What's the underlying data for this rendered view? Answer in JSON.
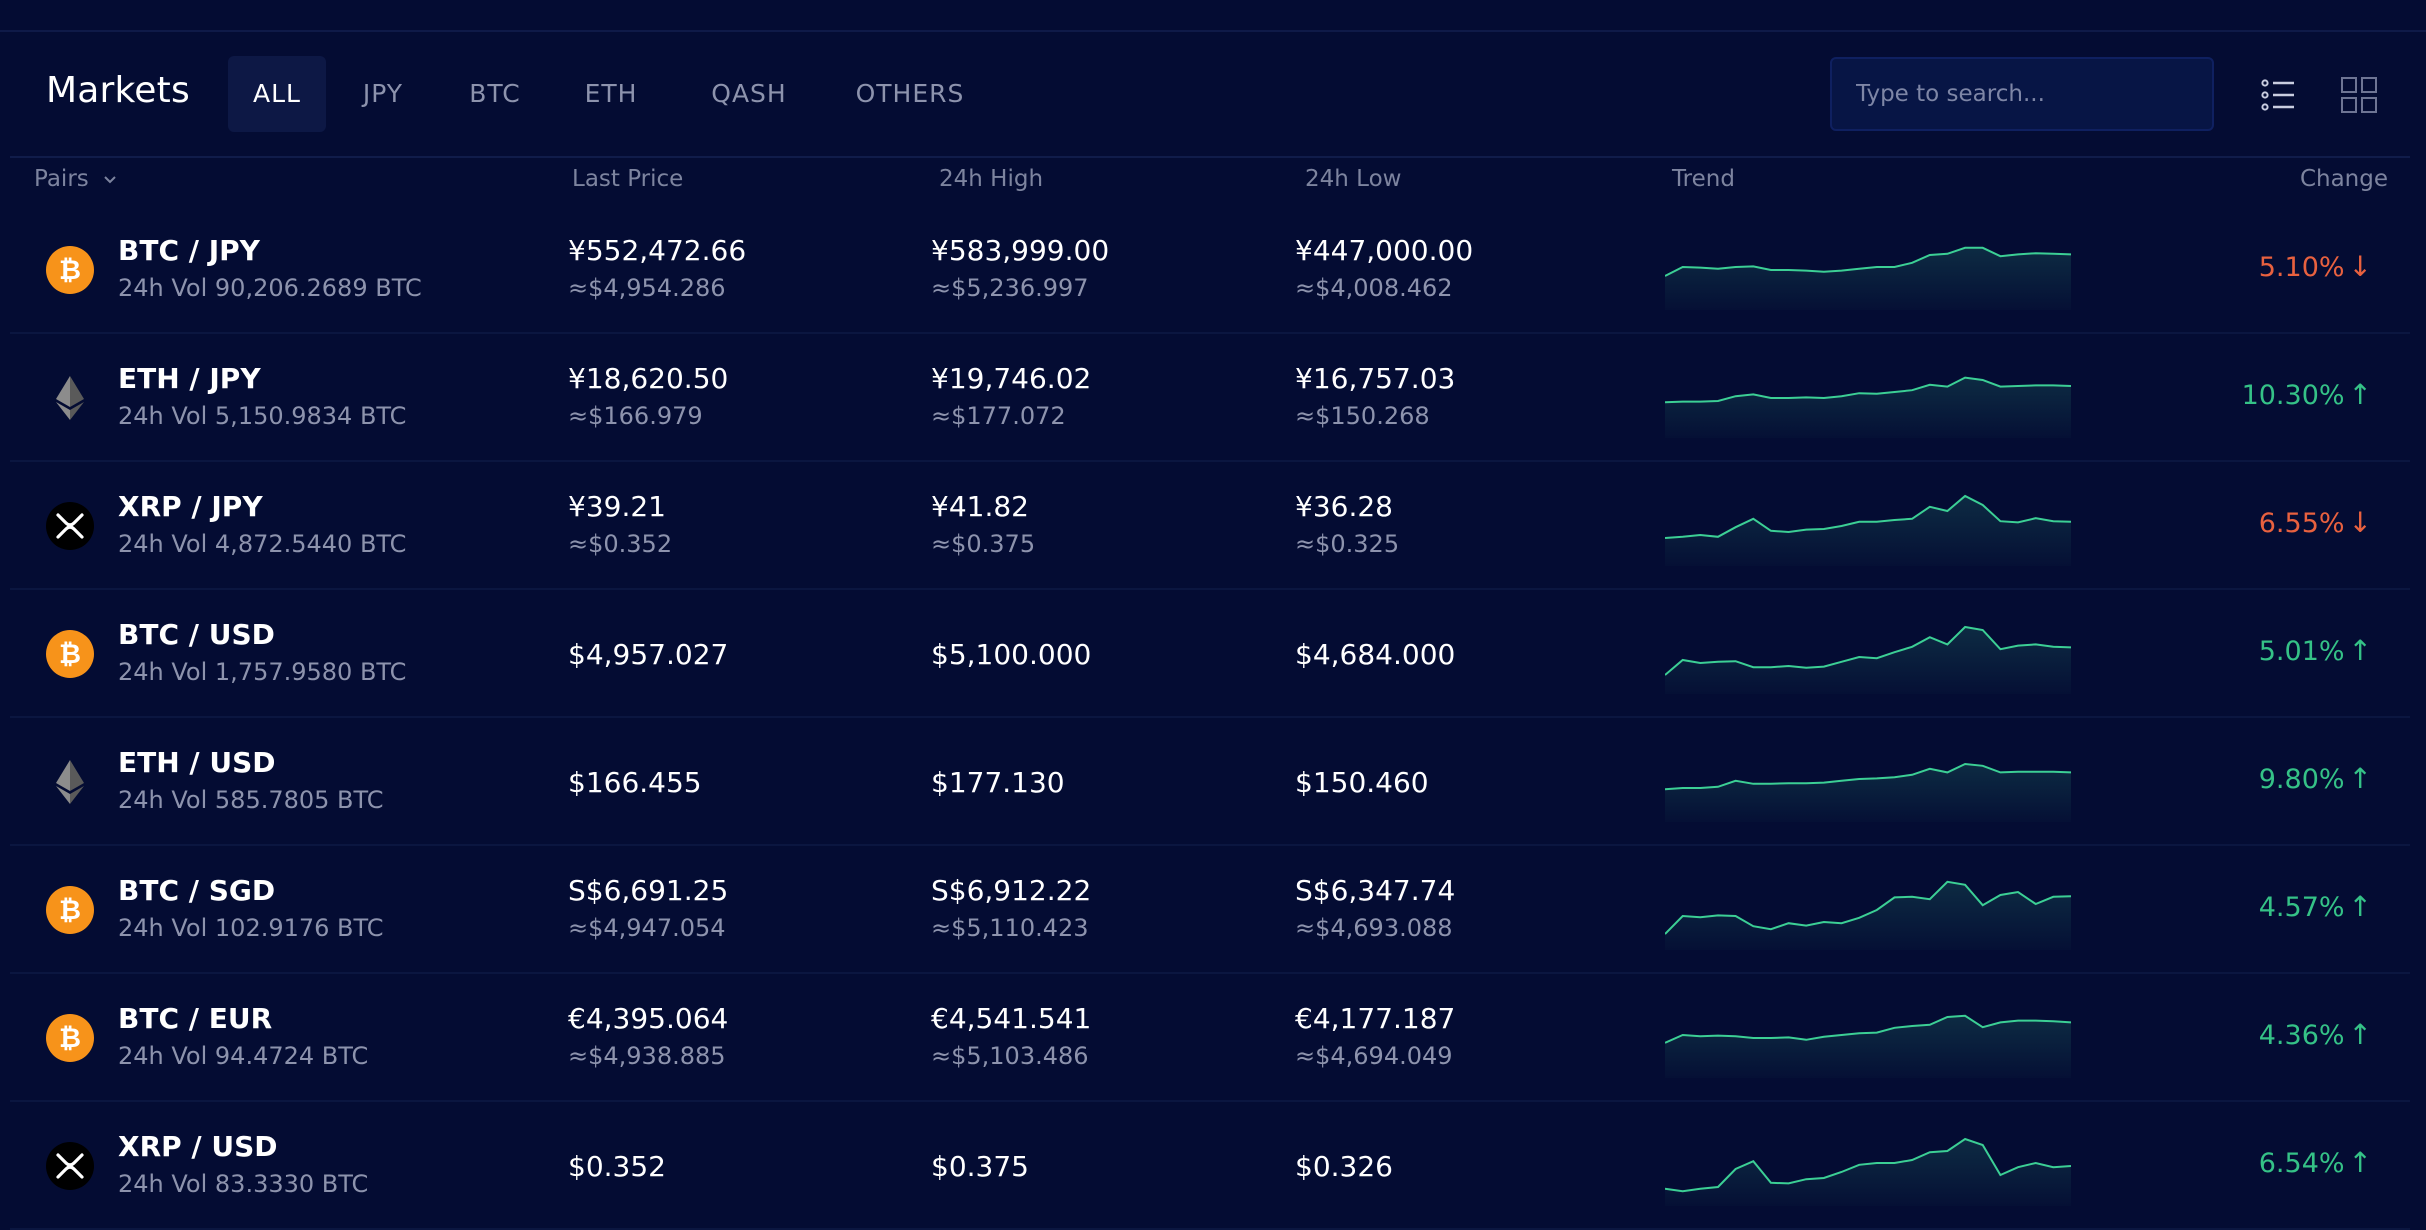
{
  "header": {
    "title": "Markets",
    "tabs": [
      {
        "label": "ALL",
        "active": true
      },
      {
        "label": "JPY",
        "active": false
      },
      {
        "label": "BTC",
        "active": false
      },
      {
        "label": "ETH",
        "active": false
      },
      {
        "label": "QASH",
        "active": false
      },
      {
        "label": "OTHERS",
        "active": false
      }
    ],
    "search": {
      "placeholder": "Type to search..."
    },
    "view_icons": [
      "list-view-icon",
      "grid-view-icon"
    ]
  },
  "table": {
    "columns": {
      "pairs": "Pairs",
      "last_price": "Last Price",
      "high": "24h High",
      "low": "24h Low",
      "trend": "Trend",
      "change": "Change"
    },
    "rows": [
      {
        "coin": "btc",
        "pair": "BTC / JPY",
        "vol": "24h Vol 90,206.2689 BTC",
        "last": "¥552,472.66",
        "last_sub": "≈$4,954.286",
        "high": "¥583,999.00",
        "high_sub": "≈$5,236.997",
        "low": "¥447,000.00",
        "low_sub": "≈$4,008.462",
        "change": "5.10%",
        "direction": "down",
        "trend": [
          0.4,
          0.55,
          0.54,
          0.52,
          0.55,
          0.56,
          0.5,
          0.5,
          0.49,
          0.47,
          0.49,
          0.52,
          0.55,
          0.55,
          0.62,
          0.75,
          0.77,
          0.87,
          0.87,
          0.73,
          0.76,
          0.78,
          0.77,
          0.76
        ]
      },
      {
        "coin": "eth",
        "pair": "ETH / JPY",
        "vol": "24h Vol 5,150.9834 BTC",
        "last": "¥18,620.50",
        "last_sub": "≈$166.979",
        "high": "¥19,746.02",
        "high_sub": "≈$177.072",
        "low": "¥16,757.03",
        "low_sub": "≈$150.268",
        "change": "10.30%",
        "direction": "up",
        "trend": [
          0.43,
          0.44,
          0.44,
          0.45,
          0.53,
          0.56,
          0.5,
          0.5,
          0.51,
          0.5,
          0.53,
          0.58,
          0.57,
          0.6,
          0.63,
          0.72,
          0.69,
          0.84,
          0.8,
          0.69,
          0.7,
          0.71,
          0.71,
          0.7
        ]
      },
      {
        "coin": "xrp",
        "pair": "XRP / JPY",
        "vol": "24h Vol 4,872.5440 BTC",
        "last": "¥39.21",
        "last_sub": "≈$0.352",
        "high": "¥41.82",
        "high_sub": "≈$0.375",
        "low": "¥36.28",
        "low_sub": "≈$0.325",
        "change": "6.55%",
        "direction": "down",
        "trend": [
          0.3,
          0.32,
          0.35,
          0.32,
          0.48,
          0.62,
          0.42,
          0.4,
          0.44,
          0.45,
          0.5,
          0.57,
          0.57,
          0.6,
          0.62,
          0.82,
          0.75,
          1.0,
          0.85,
          0.58,
          0.56,
          0.63,
          0.58,
          0.57
        ]
      },
      {
        "coin": "btc",
        "pair": "BTC / USD",
        "vol": "24h Vol 1,757.9580 BTC",
        "last": "$4,957.027",
        "last_sub": "",
        "high": "$5,100.000",
        "high_sub": "",
        "low": "$4,684.000",
        "low_sub": "",
        "change": "5.01%",
        "direction": "up",
        "trend": [
          0.15,
          0.4,
          0.35,
          0.37,
          0.38,
          0.28,
          0.28,
          0.3,
          0.27,
          0.29,
          0.37,
          0.45,
          0.43,
          0.53,
          0.62,
          0.78,
          0.66,
          0.95,
          0.9,
          0.58,
          0.64,
          0.66,
          0.62,
          0.61
        ]
      },
      {
        "coin": "eth",
        "pair": "ETH / USD",
        "vol": "24h Vol 585.7805 BTC",
        "last": "$166.455",
        "last_sub": "",
        "high": "$177.130",
        "high_sub": "",
        "low": "$150.460",
        "low_sub": "",
        "change": "9.80%",
        "direction": "up",
        "trend": [
          0.38,
          0.4,
          0.4,
          0.42,
          0.52,
          0.47,
          0.47,
          0.48,
          0.48,
          0.49,
          0.52,
          0.55,
          0.56,
          0.58,
          0.62,
          0.72,
          0.66,
          0.8,
          0.77,
          0.66,
          0.67,
          0.67,
          0.67,
          0.66
        ]
      },
      {
        "coin": "btc",
        "pair": "BTC / SGD",
        "vol": "24h Vol 102.9176 BTC",
        "last": "S$6,691.25",
        "last_sub": "≈$4,947.054",
        "high": "S$6,912.22",
        "high_sub": "≈$5,110.423",
        "low": "S$6,347.74",
        "low_sub": "≈$4,693.088",
        "change": "4.57%",
        "direction": "up",
        "trend": [
          0.1,
          0.4,
          0.38,
          0.41,
          0.4,
          0.23,
          0.18,
          0.28,
          0.24,
          0.3,
          0.28,
          0.37,
          0.5,
          0.71,
          0.72,
          0.68,
          0.97,
          0.92,
          0.58,
          0.75,
          0.8,
          0.6,
          0.72,
          0.73
        ]
      },
      {
        "coin": "btc",
        "pair": "BTC / EUR",
        "vol": "24h Vol 94.4724 BTC",
        "last": "€4,395.064",
        "last_sub": "≈$4,938.885",
        "high": "€4,541.541",
        "high_sub": "≈$5,103.486",
        "low": "€4,177.187",
        "low_sub": "≈$4,694.049",
        "change": "4.36%",
        "direction": "up",
        "trend": [
          0.42,
          0.55,
          0.53,
          0.54,
          0.53,
          0.5,
          0.5,
          0.51,
          0.47,
          0.52,
          0.55,
          0.58,
          0.59,
          0.67,
          0.7,
          0.72,
          0.85,
          0.87,
          0.68,
          0.76,
          0.79,
          0.79,
          0.78,
          0.76
        ]
      },
      {
        "coin": "xrp",
        "pair": "XRP / USD",
        "vol": "24h Vol 83.3330 BTC",
        "last": "$0.352",
        "last_sub": "",
        "high": "$0.375",
        "high_sub": "",
        "low": "$0.326",
        "low_sub": "",
        "change": "6.54%",
        "direction": "up",
        "trend": [
          0.12,
          0.08,
          0.12,
          0.15,
          0.45,
          0.58,
          0.22,
          0.21,
          0.28,
          0.3,
          0.4,
          0.52,
          0.55,
          0.55,
          0.6,
          0.73,
          0.75,
          0.95,
          0.85,
          0.35,
          0.48,
          0.55,
          0.48,
          0.5
        ]
      }
    ]
  },
  "colors": {
    "background": "#040c33",
    "up": "#35c287",
    "down": "#e8613f",
    "btc": "#f7931a",
    "trend_line": "#3ccf95"
  }
}
